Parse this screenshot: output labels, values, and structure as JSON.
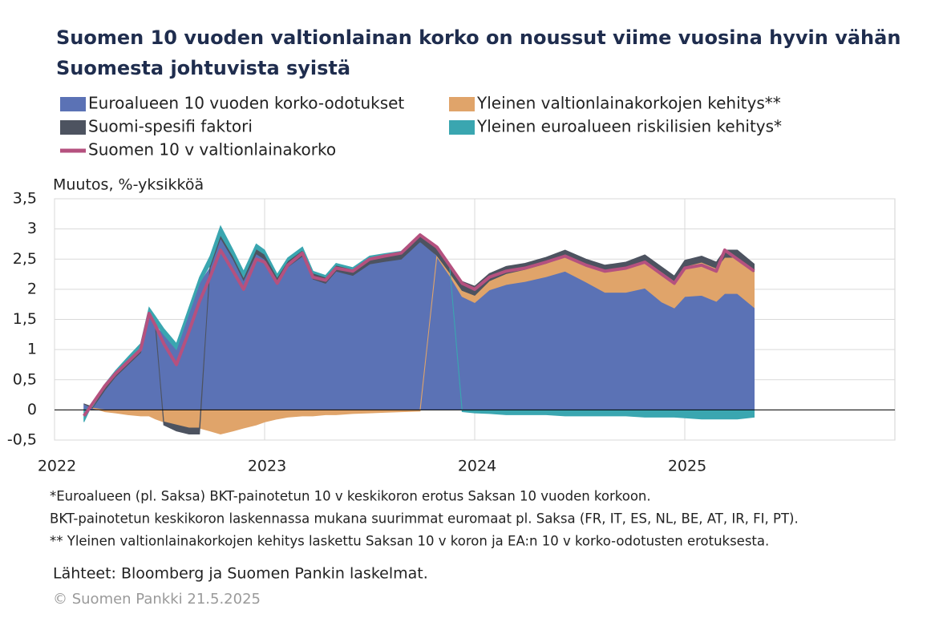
{
  "chart_data": {
    "type": "area",
    "title": [
      "Suomen 10 vuoden valtionlainan korko on noussut viime vuosina hyvin vähän",
      "Suomesta johtuvista syistä"
    ],
    "y_label": "Muutos, %-yksikköä",
    "xlim": [
      2022,
      2026
    ],
    "xticks": [
      2022,
      2023,
      2024,
      2025
    ],
    "ylim": [
      -0.5,
      3.5
    ],
    "yticks": [
      {
        "value": -0.5,
        "label": "-0,5"
      },
      0,
      {
        "value": 0.5,
        "label": "0,5"
      },
      1,
      {
        "value": 1.5,
        "label": "1,5"
      },
      2,
      {
        "value": 2.5,
        "label": "2,5"
      },
      3,
      {
        "value": 3.5,
        "label": "3,5"
      }
    ],
    "grid": true,
    "x": [
      2022.14,
      2022.18,
      2022.24,
      2022.29,
      2022.35,
      2022.41,
      2022.45,
      2022.48,
      2022.52,
      2022.58,
      2022.64,
      2022.69,
      2022.74,
      2022.79,
      2022.85,
      2022.9,
      2022.96,
      2023.0,
      2023.06,
      2023.11,
      2023.18,
      2023.23,
      2023.29,
      2023.34,
      2023.42,
      2023.5,
      2023.57,
      2023.65,
      2023.74,
      2023.82,
      2023.88,
      2023.94,
      2024.0,
      2024.07,
      2024.15,
      2024.24,
      2024.34,
      2024.43,
      2024.53,
      2024.62,
      2024.72,
      2024.81,
      2024.89,
      2024.95,
      2025.0,
      2025.08,
      2025.15,
      2025.19,
      2025.25,
      2025.33
    ],
    "series": [
      {
        "name": "Euroalueen 10 vuoden korko-odotukset",
        "color": "#5b72b5",
        "type": "area",
        "values": [
          0.1,
          0.03,
          0.33,
          0.55,
          0.75,
          0.95,
          1.55,
          1.38,
          1.25,
          1.0,
          1.6,
          2.1,
          2.35,
          2.85,
          2.5,
          2.15,
          2.59,
          2.5,
          2.12,
          2.37,
          2.55,
          2.17,
          2.1,
          2.3,
          2.23,
          2.42,
          2.46,
          2.5,
          2.79,
          2.54,
          2.23,
          1.88,
          1.78,
          1.99,
          2.08,
          2.13,
          2.21,
          2.3,
          2.12,
          1.95,
          1.95,
          2.02,
          1.79,
          1.69,
          1.88,
          1.9,
          1.8,
          1.93,
          1.93,
          1.7
        ]
      },
      {
        "name": "Yleinen valtionlainakorkojen kehitys**",
        "color": "#e0a46a",
        "type": "area",
        "values": [
          0,
          0,
          -0.03,
          -0.05,
          -0.08,
          -0.1,
          -0.1,
          -0.15,
          -0.2,
          -0.25,
          -0.3,
          -0.3,
          -0.35,
          -0.4,
          -0.35,
          -0.3,
          -0.25,
          -0.2,
          -0.15,
          -0.12,
          -0.1,
          -0.1,
          -0.08,
          -0.08,
          -0.06,
          -0.05,
          -0.04,
          -0.03,
          -0.02,
          0.02,
          0.05,
          0.1,
          0.12,
          0.15,
          0.18,
          0.2,
          0.22,
          0.25,
          0.28,
          0.35,
          0.4,
          0.45,
          0.5,
          0.45,
          0.5,
          0.55,
          0.55,
          0.6,
          0.6,
          0.6
        ]
      },
      {
        "name": "Suomi-spesifi faktori",
        "color": "#4d5360",
        "type": "area",
        "values": [
          0,
          0.02,
          0.05,
          0.05,
          0.05,
          0.05,
          0.05,
          0.05,
          -0.05,
          -0.1,
          -0.1,
          -0.1,
          0.05,
          0.05,
          0.05,
          0.05,
          0.08,
          0.08,
          0.08,
          0.1,
          0.1,
          0.1,
          0.1,
          0.1,
          0.1,
          0.1,
          0.1,
          0.1,
          0.1,
          0.12,
          0.12,
          0.15,
          0.15,
          0.12,
          0.12,
          0.1,
          0.1,
          0.1,
          0.1,
          0.1,
          0.1,
          0.1,
          0.08,
          0.08,
          0.1,
          0.1,
          0.1,
          0.12,
          0.12,
          0.12
        ]
      },
      {
        "name": "Yleinen euroalueen riskilisien kehitys*",
        "color": "#3aa6b0",
        "type": "area",
        "values": [
          -0.2,
          0.05,
          0.05,
          0.05,
          0.08,
          0.1,
          0.1,
          0.12,
          0.1,
          0.1,
          0.1,
          0.1,
          0.15,
          0.15,
          0.1,
          0.1,
          0.08,
          0.07,
          0.05,
          0.05,
          0.05,
          0.03,
          0.03,
          0.03,
          0.03,
          0.03,
          0.03,
          0.03,
          0.03,
          0.02,
          0,
          -0.03,
          -0.05,
          -0.06,
          -0.08,
          -0.08,
          -0.08,
          -0.1,
          -0.1,
          -0.1,
          -0.1,
          -0.12,
          -0.12,
          -0.12,
          -0.13,
          -0.15,
          -0.15,
          -0.15,
          -0.15,
          -0.12
        ]
      },
      {
        "name": "Suomen 10 v valtionlainakorko",
        "color": "#b5517f",
        "type": "line",
        "values": [
          -0.1,
          0.1,
          0.4,
          0.6,
          0.8,
          1.0,
          1.6,
          1.4,
          1.1,
          0.75,
          1.3,
          1.8,
          2.2,
          2.65,
          2.3,
          2.0,
          2.5,
          2.45,
          2.1,
          2.4,
          2.6,
          2.2,
          2.15,
          2.35,
          2.3,
          2.5,
          2.55,
          2.6,
          2.9,
          2.7,
          2.4,
          2.1,
          2.0,
          2.2,
          2.3,
          2.35,
          2.45,
          2.55,
          2.4,
          2.3,
          2.35,
          2.45,
          2.25,
          2.1,
          2.35,
          2.4,
          2.3,
          2.65,
          2.5,
          2.3
        ]
      }
    ],
    "notes": [
      "*Euroalueen (pl. Saksa) BKT-painotetun 10 v keskikoron erotus Saksan 10 vuoden korkoon.",
      "BKT-painotetun keskikoron laskennassa mukana suurimmat euromaat pl. Saksa (FR, IT, ES, NL, BE, AT, IR, FI, PT).",
      "** Yleinen valtionlainakorkojen kehitys laskettu Saksan 10 v koron ja EA:n 10 v korko-odotusten erotuksesta."
    ],
    "source": "Lähteet: Bloomberg ja Suomen Pankin laskelmat.",
    "copyright": "© Suomen Pankki 21.5.2025"
  }
}
